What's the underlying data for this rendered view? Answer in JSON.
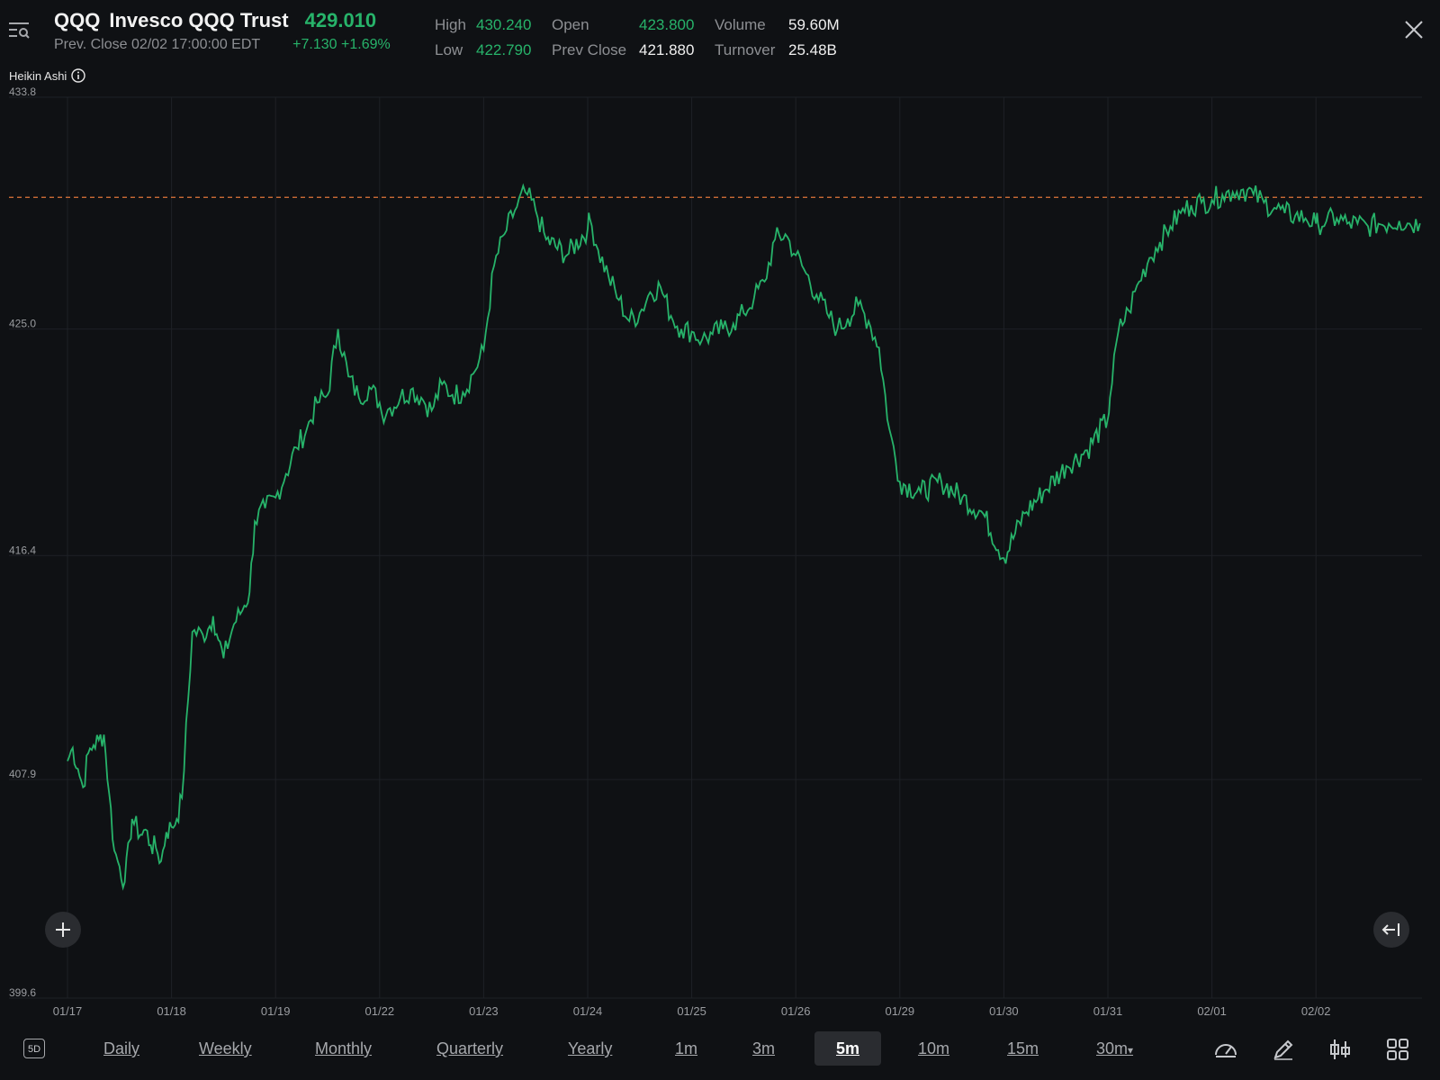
{
  "header": {
    "symbol": "QQQ",
    "name": "Invesco QQQ Trust",
    "price": "429.010",
    "prev_close_time": "Prev. Close 02/02 17:00:00 EDT",
    "change": "+7.130",
    "change_pct": "+1.69%",
    "stats": {
      "high_label": "High",
      "high": "430.240",
      "low_label": "Low",
      "low": "422.790",
      "open_label": "Open",
      "open": "423.800",
      "prev_close_label": "Prev Close",
      "prev_close": "421.880",
      "volume_label": "Volume",
      "volume": "59.60M",
      "turnover_label": "Turnover",
      "turnover": "25.48B"
    }
  },
  "indicator": {
    "label": "Heikin Ashi"
  },
  "colors": {
    "up": "#27b36a",
    "reference_line": "#e0763a",
    "grid": "#1e2126",
    "background": "#0f1114"
  },
  "chart_data": {
    "type": "line",
    "title": "",
    "xlabel": "",
    "ylabel": "",
    "ylim": [
      399.6,
      433.8
    ],
    "y_ticks": [
      "433.8",
      "425.0",
      "416.4",
      "407.9",
      "399.6"
    ],
    "x_ticks": [
      "01/17",
      "01/18",
      "01/19",
      "01/22",
      "01/23",
      "01/24",
      "01/25",
      "01/26",
      "01/29",
      "01/30",
      "01/31",
      "02/01",
      "02/02"
    ],
    "reference_line": 430.0,
    "grid": true,
    "legend": "none",
    "series": [
      {
        "x": [
          0,
          0.05,
          0.1,
          0.15,
          0.2,
          0.25,
          0.3,
          0.35,
          0.4,
          0.45,
          0.5,
          0.55,
          0.6,
          0.62,
          0.7,
          0.75,
          0.8,
          0.85,
          0.9,
          0.95,
          1.0,
          1.05,
          1.1,
          1.2,
          1.3,
          1.35,
          1.4,
          1.45,
          1.5,
          1.6,
          1.7,
          1.75,
          1.8,
          1.9,
          2.0,
          2.1,
          2.2,
          2.3,
          2.4,
          2.5,
          2.6,
          2.7,
          2.8,
          2.9,
          3.0,
          3.02,
          3.1,
          3.2,
          3.3,
          3.4,
          3.5,
          3.6,
          3.7,
          3.8,
          3.9,
          4.0,
          4.1,
          4.2,
          4.3,
          4.4,
          4.5,
          4.6,
          4.8,
          5.0,
          5.02,
          5.1,
          5.2,
          5.3,
          5.4,
          5.5,
          5.6,
          5.7,
          5.8,
          5.9,
          6.0,
          6.1,
          6.2,
          6.3,
          6.4,
          6.5,
          6.6,
          6.7,
          6.8,
          6.9,
          7.0,
          7.1,
          7.2,
          7.3,
          7.4,
          7.5,
          7.6,
          7.7,
          7.8,
          7.9,
          8.0,
          8.2,
          8.4,
          8.6,
          8.8,
          9.0,
          9.2,
          9.4,
          9.6,
          9.8,
          10.0,
          10.02,
          10.1,
          10.2,
          10.3,
          10.4,
          10.5,
          10.6,
          10.7,
          10.8,
          10.9,
          11.0,
          11.1,
          11.2,
          11.3,
          11.4,
          11.5,
          11.6,
          11.7,
          11.8,
          11.9,
          12.0,
          12.02,
          12.1,
          12.2,
          12.3,
          12.4,
          12.5,
          12.6,
          12.7,
          12.8,
          12.9,
          13.0
        ],
        "values": [
          408.6,
          409.1,
          408.3,
          407.6,
          408.9,
          409.2,
          409.4,
          409.6,
          407.4,
          405.2,
          404.6,
          404.0,
          405.6,
          406.4,
          405.8,
          406.0,
          405.4,
          405.3,
          404.8,
          405.9,
          406.1,
          406.4,
          407.2,
          413.5,
          413.4,
          413.6,
          414.1,
          413.2,
          412.5,
          413.8,
          414.5,
          415.0,
          417.7,
          418.2,
          418.6,
          419.5,
          420.5,
          421.2,
          422.2,
          422.5,
          425.0,
          423.2,
          422.4,
          422.8,
          422.2,
          421.8,
          422.0,
          422.4,
          422.7,
          422.4,
          421.9,
          422.9,
          422.5,
          422.6,
          423.3,
          424.2,
          427.4,
          428.6,
          429.5,
          430.2,
          429.5,
          428.4,
          427.8,
          428.8,
          429.2,
          428.0,
          427.0,
          426.1,
          425.3,
          425.6,
          426.4,
          426.6,
          425.5,
          425.0,
          424.9,
          424.6,
          424.8,
          425.0,
          425.2,
          425.6,
          426.2,
          426.8,
          428.4,
          428.6,
          427.8,
          427.1,
          426.3,
          425.6,
          425.0,
          425.4,
          425.9,
          425.3,
          424.3,
          421.2,
          419.2,
          418.8,
          419.2,
          418.6,
          418.0,
          416.3,
          418.0,
          418.9,
          419.8,
          420.4,
          421.6,
          422.4,
          424.9,
          425.7,
          426.8,
          427.7,
          428.3,
          428.9,
          429.4,
          429.7,
          429.8,
          429.9,
          430.1,
          430.2,
          430.3,
          430.1,
          429.8,
          429.6,
          429.4,
          429.3,
          429.2,
          429.0,
          429.0,
          429.1,
          429.2,
          429.0,
          429.0,
          428.9,
          429.0,
          429.0,
          429.1,
          429.0,
          429.01
        ]
      }
    ]
  },
  "toolbar": {
    "range_badge": "5D",
    "items": [
      "Daily",
      "Weekly",
      "Monthly",
      "Quarterly",
      "Yearly",
      "1m",
      "3m",
      "5m",
      "10m",
      "15m",
      "30m"
    ],
    "active": "5m",
    "dropdown_arrow": "▾"
  },
  "icons": [
    "menu-search-icon",
    "close-icon",
    "info-icon",
    "plus-icon",
    "jump-to-latest-icon",
    "speedometer-icon",
    "pencil-icon",
    "chart-type-icon",
    "grid-icon"
  ]
}
